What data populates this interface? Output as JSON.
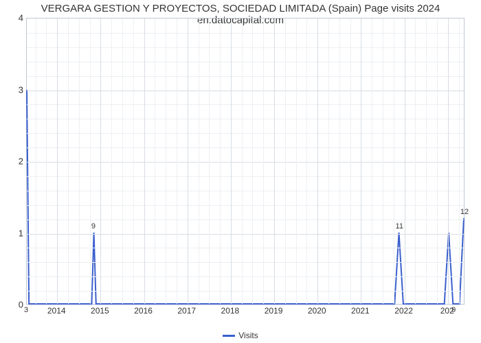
{
  "title": "VERGARA GESTION Y PROYECTOS, SOCIEDAD LIMITADA (Spain) Page visits 2024 en.datocapital.com",
  "chart": {
    "type": "line",
    "background_color": "#ffffff",
    "grid_major_color": "#d8dde4",
    "grid_minor_color": "#eceff3",
    "border_color": "#bfc8d4",
    "line_color": "#3a5fcd",
    "line_width": 2,
    "title_fontsize": 15,
    "tick_fontsize": 13,
    "x_tick_fontsize": 12,
    "point_label_fontsize": 11,
    "ylim": [
      0,
      4
    ],
    "ytick_step": 1,
    "y_minor_per_major": 4,
    "xlim": [
      2013.3,
      2023.4
    ],
    "x_ticks": [
      2014,
      2015,
      2016,
      2017,
      2018,
      2019,
      2020,
      2021,
      2022,
      2023
    ],
    "x_last_tick_label": "202",
    "x_minor_per_year": 3,
    "series": {
      "name": "Visits",
      "x": [
        2013.3,
        2013.35,
        2013.45,
        2014.8,
        2014.85,
        2014.9,
        2021.8,
        2021.9,
        2022.0,
        2022.95,
        2023.05,
        2023.15,
        2023.3,
        2023.4
      ],
      "y": [
        3.0,
        0.0,
        0.0,
        0.0,
        1.0,
        0.0,
        0.0,
        1.0,
        0.0,
        0.0,
        1.0,
        0.0,
        0.0,
        1.2
      ],
      "labels": [
        "3",
        "",
        "",
        "",
        "9",
        "",
        "",
        "11",
        "",
        "",
        "",
        "9",
        "",
        "12"
      ]
    }
  },
  "legend": {
    "label": "Visits"
  }
}
